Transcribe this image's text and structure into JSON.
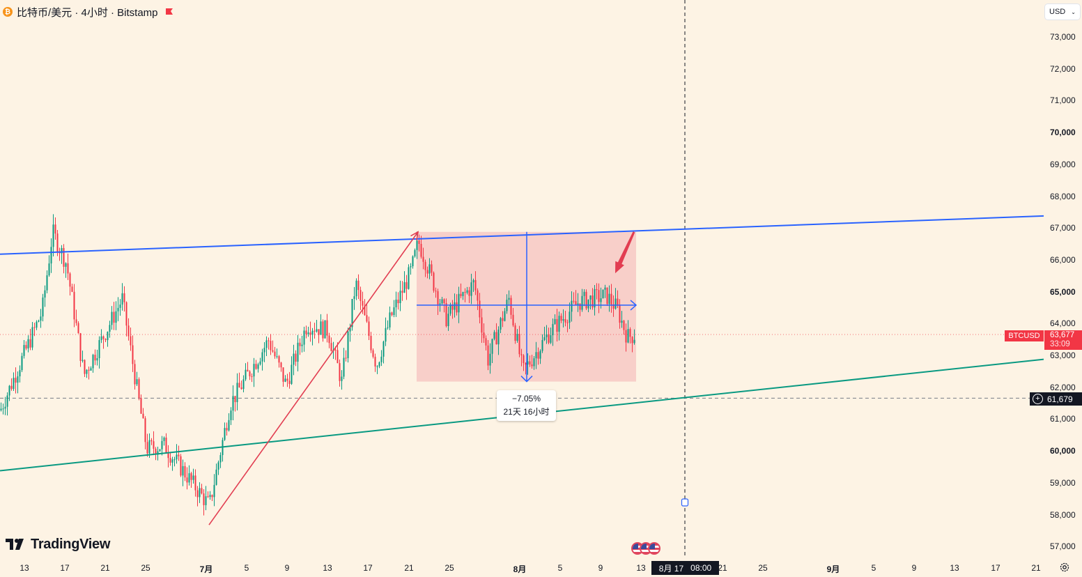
{
  "header": {
    "title": "比特币/美元 · 4小时 · Bitstamp",
    "coin_icon": "bitcoin-icon",
    "flag_icon": "red-flag-icon"
  },
  "currency_select": {
    "value": "USD"
  },
  "price_axis": {
    "ticks": [
      "73,000",
      "72,000",
      "71,000",
      "70,000",
      "69,000",
      "68,000",
      "67,000",
      "66,000",
      "65,000",
      "64,000",
      "63,000",
      "62,000",
      "61,000",
      "60,000",
      "59,000",
      "58,000",
      "57,000"
    ],
    "bold_ticks": [
      "70,000",
      "65,000",
      "60,000"
    ]
  },
  "time_axis": {
    "labels": [
      "13",
      "17",
      "21",
      "25",
      "7月",
      "5",
      "9",
      "13",
      "17",
      "21",
      "25",
      "8月",
      "5",
      "9",
      "13",
      "21",
      "25",
      "9月",
      "5",
      "9",
      "13",
      "17",
      "21"
    ],
    "bold_labels": [
      "7月",
      "8月",
      "9月"
    ]
  },
  "symbol_tag": {
    "label": "BTCUSD",
    "price": "63,677",
    "countdown": "33:09"
  },
  "crosshair": {
    "price": "61,679",
    "date": "8月 17",
    "time": "08:00"
  },
  "measure": {
    "percent": "−7.05%",
    "duration": "21天 16小时"
  },
  "brand": {
    "name": "TradingView"
  },
  "colors": {
    "up": "#089981",
    "down": "#f23645",
    "channel_top": "#2962ff",
    "channel_bottom": "#089981",
    "trend_arrow": "#e23d51",
    "range_fill": "#f7c8c4",
    "background": "#fdf3e4"
  },
  "chart_data": {
    "type": "candlestick",
    "symbol": "BTCUSD",
    "exchange": "Bitstamp",
    "interval": "4小时",
    "ylim": [
      56500,
      73800
    ],
    "last_price": 63677,
    "crosshair_price": 61679,
    "series_path": [
      [
        0,
        61300
      ],
      [
        60,
        64400
      ],
      [
        75,
        66900
      ],
      [
        95,
        65900
      ],
      [
        120,
        62400
      ],
      [
        175,
        64800
      ],
      [
        210,
        60100
      ],
      [
        235,
        60200
      ],
      [
        300,
        58300
      ],
      [
        330,
        61500
      ],
      [
        385,
        63500
      ],
      [
        410,
        62100
      ],
      [
        440,
        64000
      ],
      [
        470,
        63800
      ],
      [
        490,
        62200
      ],
      [
        510,
        65300
      ],
      [
        540,
        62700
      ],
      [
        560,
        64200
      ],
      [
        590,
        65700
      ],
      [
        600,
        66600
      ],
      [
        640,
        64200
      ],
      [
        680,
        65300
      ],
      [
        700,
        62900
      ],
      [
        730,
        64800
      ],
      [
        750,
        62500
      ],
      [
        790,
        63800
      ],
      [
        830,
        64700
      ],
      [
        870,
        64900
      ],
      [
        885,
        64500
      ],
      [
        900,
        63600
      ],
      [
        912,
        63677
      ]
    ],
    "drawings": [
      {
        "kind": "trendline",
        "color": "channel_top",
        "from": [
          0,
          66200
        ],
        "to": [
          1498,
          67400
        ]
      },
      {
        "kind": "trendline",
        "color": "channel_bottom",
        "from": [
          0,
          59400
        ],
        "to": [
          1498,
          62900
        ]
      },
      {
        "kind": "arrow",
        "color": "trend_arrow",
        "from": [
          300,
          57700
        ],
        "to": [
          600,
          66900
        ]
      },
      {
        "kind": "arrow",
        "color": "trend_arrow",
        "from": [
          910,
          66900
        ],
        "to": [
          883,
          65600
        ]
      },
      {
        "kind": "date_price_range",
        "x": [
          598,
          913
        ],
        "price": [
          62200,
          66900
        ],
        "midline": 64600,
        "percent": "−7.05%",
        "duration": "21天 16小时"
      }
    ]
  }
}
